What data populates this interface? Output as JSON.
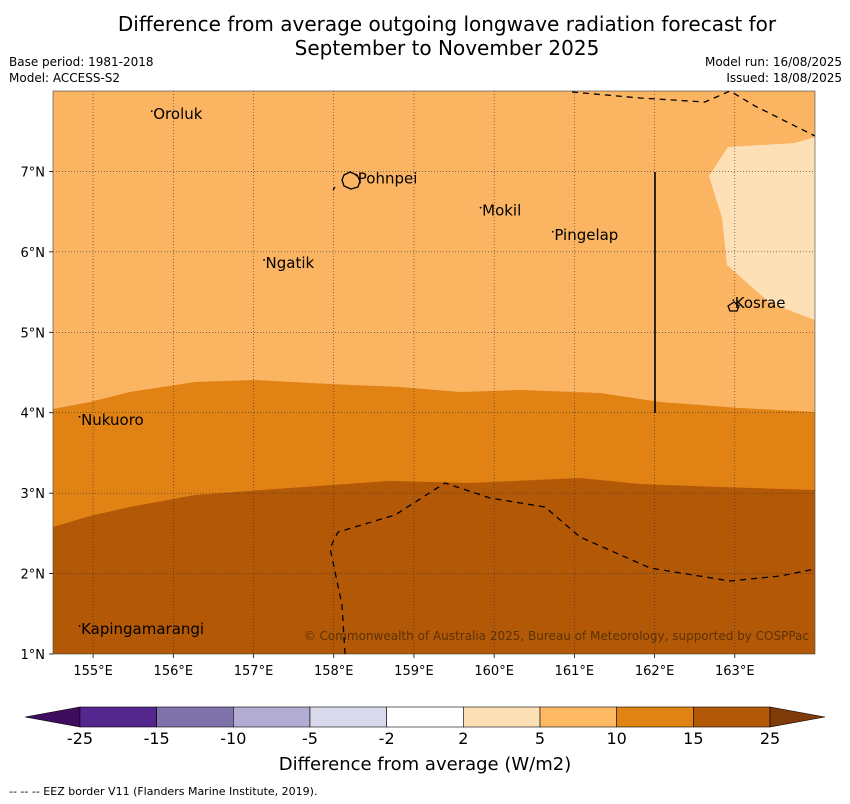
{
  "title_line1": "Difference from average outgoing longwave radiation forecast for",
  "title_line2": "September to November 2025",
  "base_period": "Base period: 1981-2018",
  "model": "Model: ACCESS-S2",
  "model_run": "Model run: 16/08/2025",
  "issued": "Issued: 18/08/2025",
  "copyright": "© Commonwealth of Australia 2025, Bureau of Meteorology, supported by COSPPac",
  "footnote": "-- -- -- EEZ border V11 (Flanders Marine Institute, 2019).",
  "map": {
    "lon_range": [
      154.5,
      164.0
    ],
    "lat_range": [
      1.0,
      8.0
    ],
    "lon_ticks": [
      "155°E",
      "156°E",
      "157°E",
      "158°E",
      "159°E",
      "160°E",
      "161°E",
      "162°E",
      "163°E"
    ],
    "lat_ticks": [
      "1°N",
      "2°N",
      "3°N",
      "4°N",
      "5°N",
      "6°N",
      "7°N"
    ],
    "places": [
      {
        "name": "Oroluk",
        "lon": 155.75,
        "lat": 7.65
      },
      {
        "name": "Pohnpei",
        "lon": 158.3,
        "lat": 6.85
      },
      {
        "name": "Mokil",
        "lon": 159.85,
        "lat": 6.45
      },
      {
        "name": "Pingelap",
        "lon": 160.75,
        "lat": 6.15
      },
      {
        "name": "Ngatik",
        "lon": 157.15,
        "lat": 5.8
      },
      {
        "name": "Kosrae",
        "lon": 163.0,
        "lat": 5.3
      },
      {
        "name": "Nukuoro",
        "lon": 154.85,
        "lat": 3.85
      },
      {
        "name": "Kapingamarangi",
        "lon": 154.85,
        "lat": 1.25
      }
    ]
  },
  "colorbar": {
    "labels": [
      "-25",
      "-15",
      "-10",
      "-5",
      "-2",
      "2",
      "5",
      "10",
      "15",
      "25"
    ],
    "colors": [
      "#3f0d5e",
      "#54278f",
      "#8073ac",
      "#b2abd2",
      "#d8daeb",
      "#ffffff",
      "#fee0b6",
      "#fdb863",
      "#e08214",
      "#b35806",
      "#7f3b08"
    ],
    "title": "Difference from average (W/m2)"
  }
}
